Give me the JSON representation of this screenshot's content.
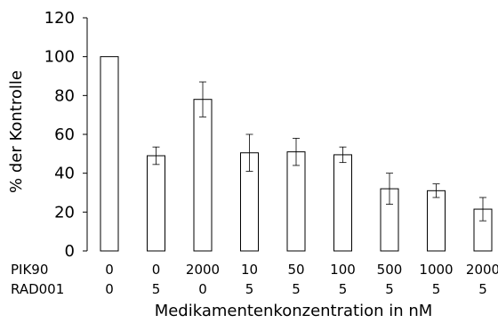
{
  "chart_data": {
    "type": "bar",
    "ylabel": "% der Kontrolle",
    "xlabel": "Medikamentenkonzentration in nM",
    "ylim": [
      0,
      120
    ],
    "yticks": [
      0,
      20,
      40,
      60,
      80,
      100,
      120
    ],
    "grid": false,
    "category_rows": [
      {
        "label": "PIK90",
        "values": [
          "0",
          "0",
          "2000",
          "10",
          "50",
          "100",
          "500",
          "1000",
          "2000"
        ]
      },
      {
        "label": "RAD001",
        "values": [
          "0",
          "5",
          "0",
          "5",
          "5",
          "5",
          "5",
          "5",
          "5"
        ]
      }
    ],
    "values": [
      100,
      49,
      78,
      50.5,
      51,
      49.5,
      32,
      31,
      21.5
    ],
    "errors": [
      0,
      4.5,
      9,
      9.5,
      7,
      4,
      8,
      3.5,
      6
    ]
  }
}
